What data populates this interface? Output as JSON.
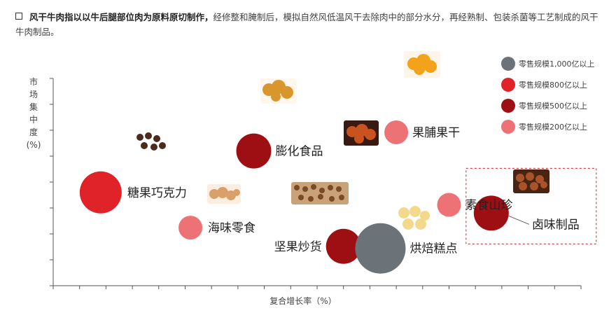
{
  "intro": {
    "bold": "风干牛肉指以以牛后腿部位肉为原料原切制作，",
    "rest": "经修整和腌制后，模拟自然风低温风干去除肉中的部分水分，再经熟制、包装杀菌等工艺制成的风干牛肉制品。"
  },
  "chart_data": {
    "type": "bubble",
    "xlabel": "复合增长率（%）",
    "ylabel": "市场集中度（%）",
    "xlim": [
      0,
      10
    ],
    "ylim": [
      0,
      10
    ],
    "legend_position": "top-right",
    "sizes": [
      {
        "key": "s1000",
        "label": "零售规模1,000亿以上",
        "color": "#6c7378",
        "radius": 36
      },
      {
        "key": "s800",
        "label": "零售规模800亿以上",
        "color": "#e02328",
        "radius": 30
      },
      {
        "key": "s500",
        "label": "零售规模500亿以上",
        "color": "#9e0f14",
        "radius": 25
      },
      {
        "key": "s200",
        "label": "零售规模200亿以上",
        "color": "#ec7275",
        "radius": 17
      }
    ],
    "points": [
      {
        "name": "糖果巧克力",
        "x": 0.9,
        "y": 4.5,
        "size": "s800",
        "highlight": false
      },
      {
        "name": "海味零食",
        "x": 2.6,
        "y": 2.8,
        "size": "s200",
        "highlight": false
      },
      {
        "name": "膨化食品",
        "x": 3.8,
        "y": 6.5,
        "size": "s500",
        "highlight": false
      },
      {
        "name": "坚果炒货",
        "x": 5.5,
        "y": 1.9,
        "size": "s500",
        "highlight": false
      },
      {
        "name": "烘焙糕点",
        "x": 6.2,
        "y": 1.8,
        "size": "s1000",
        "highlight": false
      },
      {
        "name": "果脯果干",
        "x": 6.5,
        "y": 7.4,
        "size": "s200",
        "highlight": false
      },
      {
        "name": "素食山珍",
        "x": 7.5,
        "y": 3.9,
        "size": "s200",
        "highlight": false
      },
      {
        "name": "卤味制品",
        "x": 8.3,
        "y": 3.5,
        "size": "s500",
        "highlight": true
      }
    ]
  }
}
